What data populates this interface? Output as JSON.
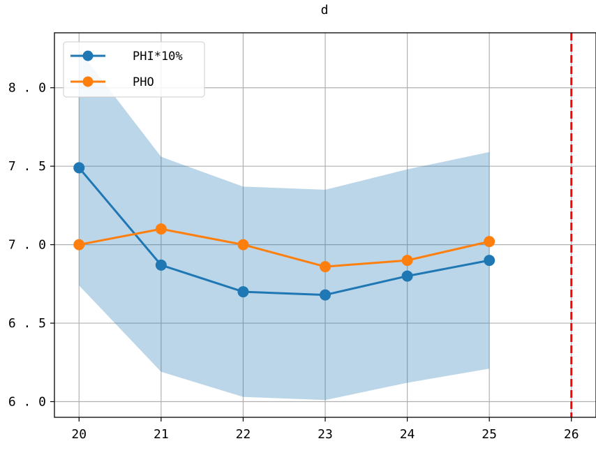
{
  "chart_data": {
    "type": "line",
    "title": "d",
    "xlabel": "",
    "ylabel": "",
    "x": [
      20,
      21,
      22,
      23,
      24,
      25
    ],
    "xticks": [
      "20",
      "21",
      "22",
      "23",
      "24",
      "25",
      "26"
    ],
    "yticks": [
      "6.0",
      "6.5",
      "7.0",
      "7.5",
      "8.0"
    ],
    "xlim": [
      19.7,
      26.3
    ],
    "ylim": [
      5.9,
      8.35
    ],
    "grid": true,
    "legend_position": "top-left",
    "series": [
      {
        "name": "PHI*10%",
        "color": "#1f77b4",
        "marker": "o",
        "values": [
          7.49,
          6.87,
          6.7,
          6.68,
          6.8,
          6.9
        ]
      },
      {
        "name": "PHO",
        "color": "#ff7f0e",
        "marker": "o",
        "values": [
          7.0,
          7.1,
          7.0,
          6.86,
          6.9,
          7.02
        ]
      }
    ],
    "band": {
      "color": "#1f77b4",
      "opacity": 0.3,
      "upper": [
        8.24,
        7.56,
        7.37,
        7.35,
        7.48,
        7.59
      ],
      "lower": [
        6.74,
        6.19,
        6.03,
        6.01,
        6.12,
        6.21
      ]
    },
    "vline": {
      "x": 26,
      "color": "#ff0000",
      "style": "dashed"
    }
  }
}
